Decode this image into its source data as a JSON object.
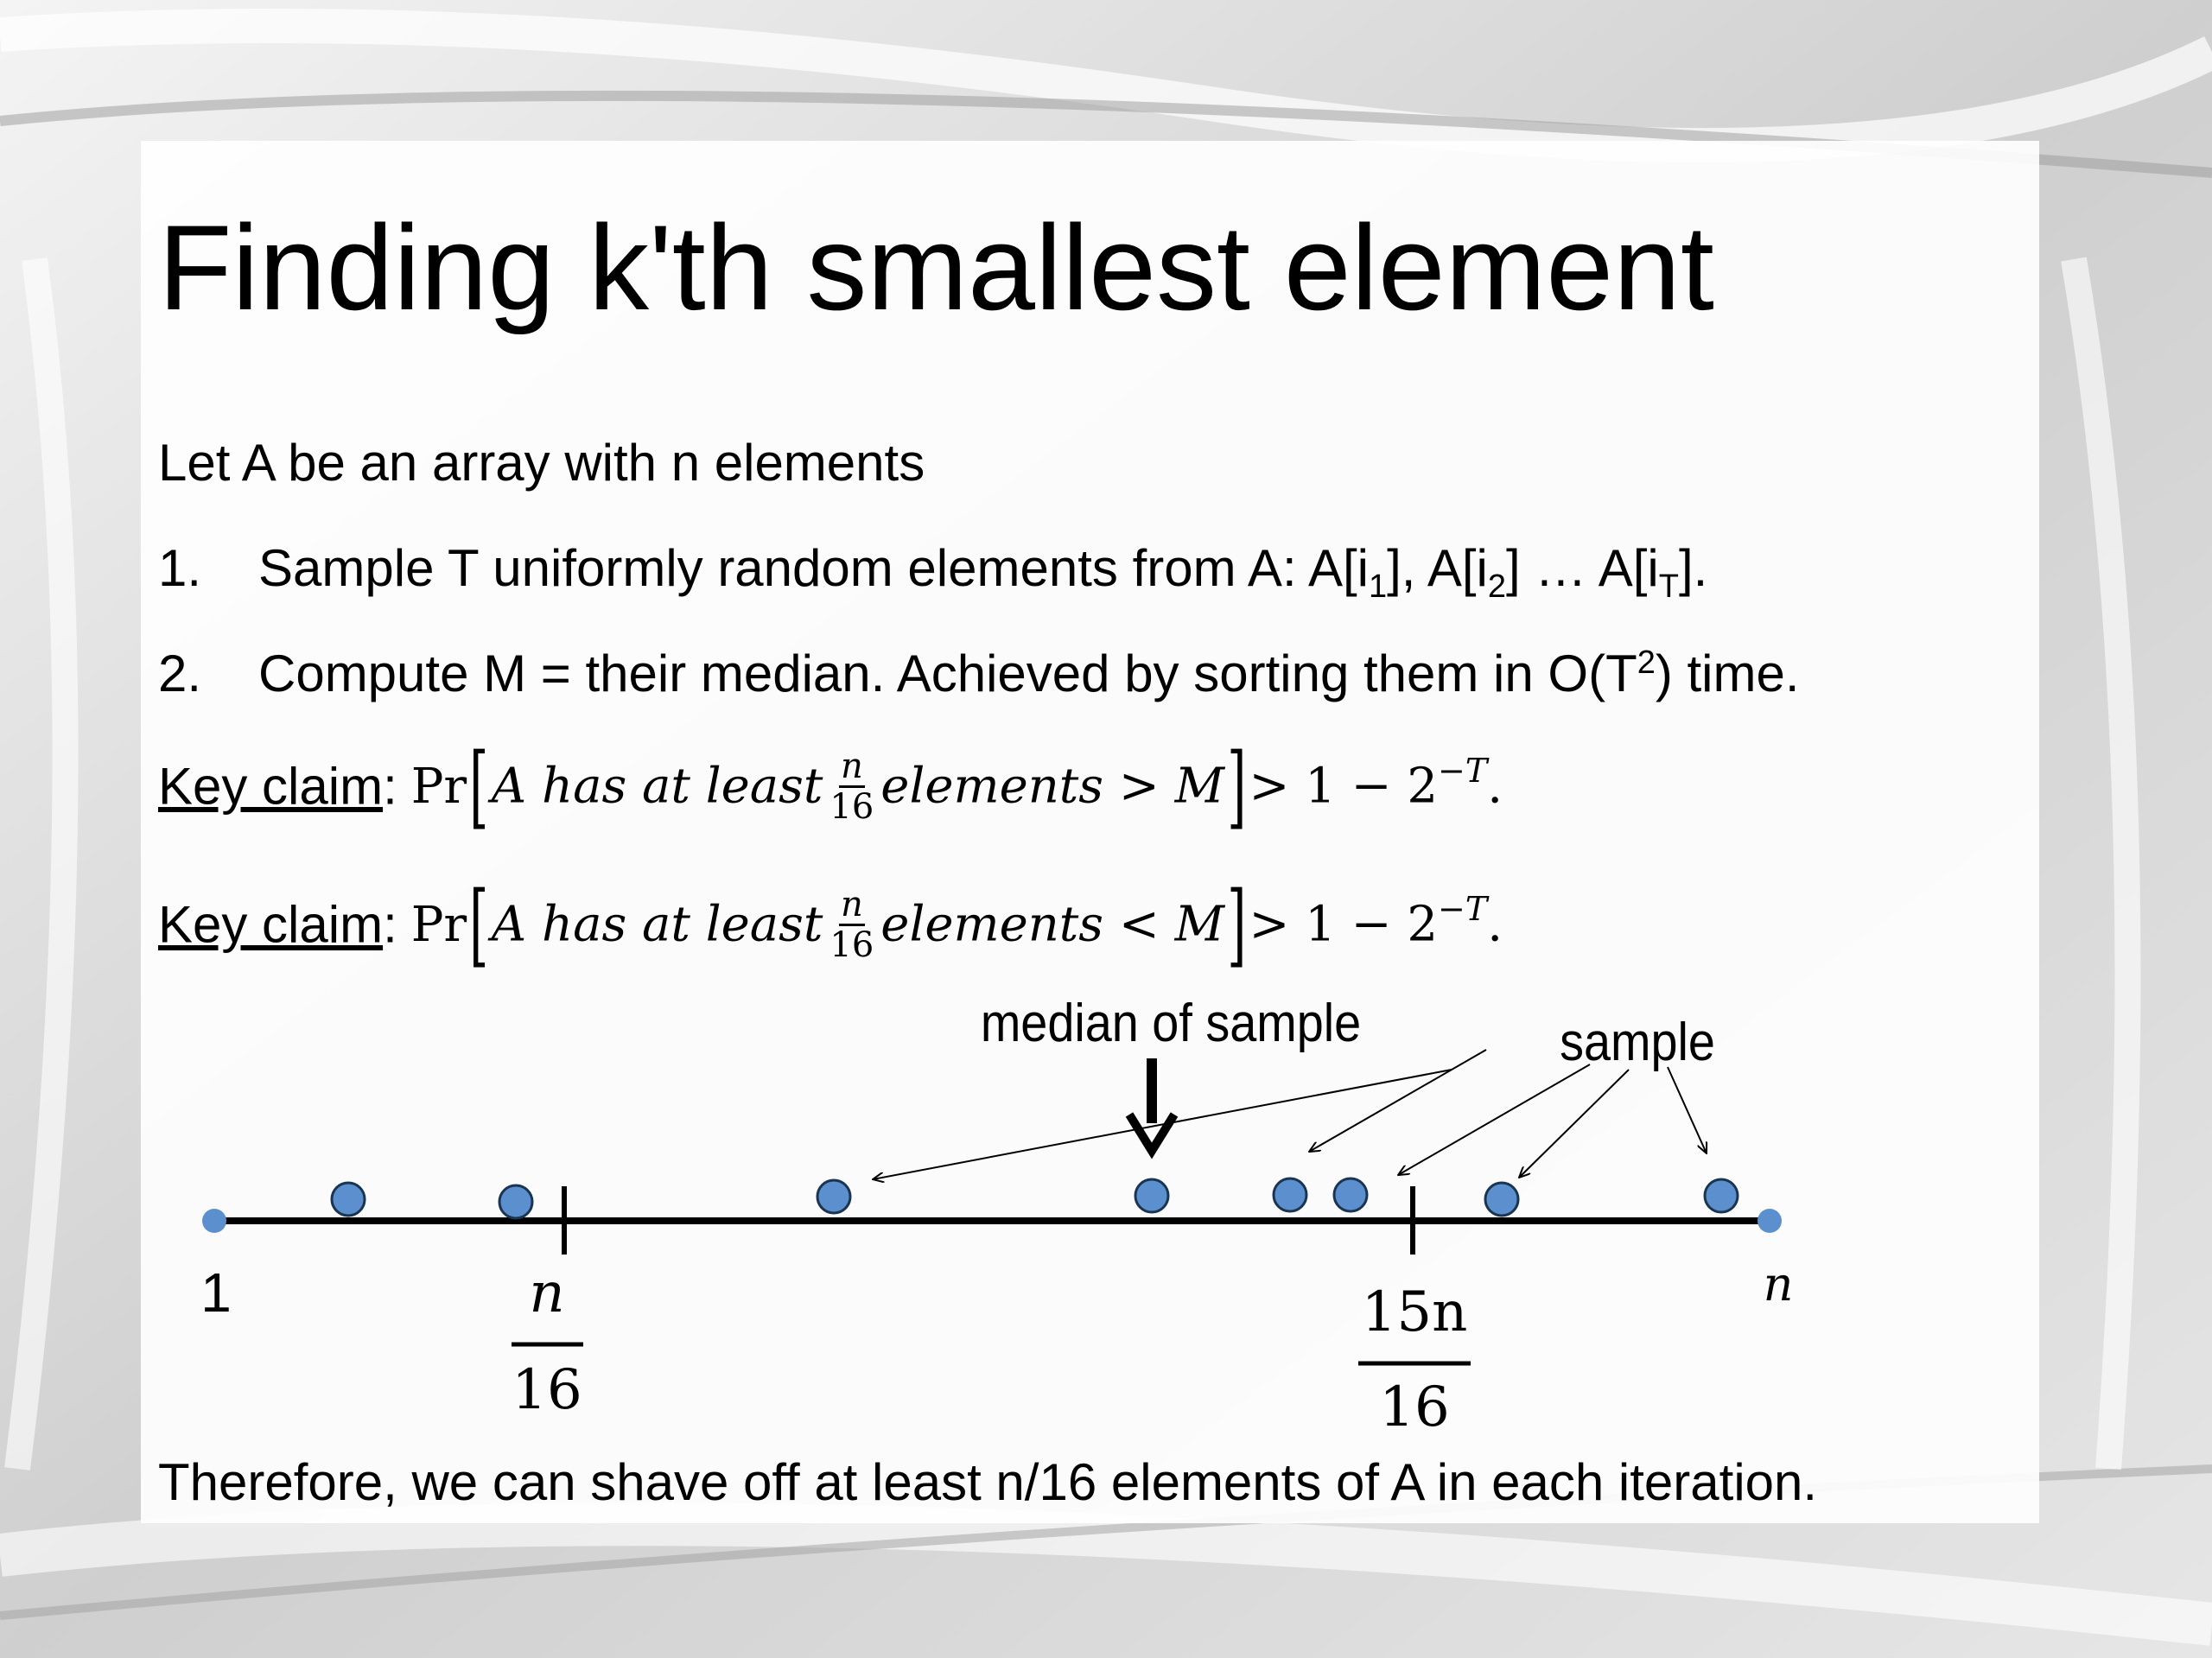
{
  "title": "Finding k'th smallest element",
  "intro": "Let A be an array with n elements",
  "steps": [
    {
      "num": "1.",
      "text_a": "Sample T uniformly random elements from A: A[i",
      "sub1": "1",
      "text_b": "], A[i",
      "sub2": "2",
      "text_c": "] … A[i",
      "subT": "T",
      "text_d": "]."
    },
    {
      "num": "2.",
      "text_a": "Compute M = their median. Achieved by sorting them in O(T",
      "sup": "2",
      "text_b": ") time."
    }
  ],
  "claims": [
    {
      "label": "Key claim",
      "colon": ":",
      "pr": "Pr",
      "lbracket": "[",
      "phrase": "A has at least",
      "frac_num": "n",
      "frac_den": "16",
      "tail": "elements > M",
      "rbracket": "]",
      "rhs": "> 1 − 2",
      "exp": "−T",
      "end": "."
    },
    {
      "label": "Key claim",
      "colon": ":",
      "pr": "Pr",
      "lbracket": "[",
      "phrase": "A has at least",
      "frac_num": "n",
      "frac_den": "16",
      "tail": "elements < M",
      "rbracket": "]",
      "rhs": "> 1 − 2",
      "exp": "−T",
      "end": "."
    }
  ],
  "diagram": {
    "median_label": "median of sample",
    "sample_label": "sample",
    "line_start_label": "1",
    "line_end_label": "n",
    "left_tick_num": "n",
    "left_tick_den": "16",
    "right_tick_num": "15n",
    "right_tick_den": "16",
    "dot_color": "#5b8fcd",
    "line_color": "#000000"
  },
  "footer": "Therefore, we can shave off at least n/16 elements of A in each iteration."
}
